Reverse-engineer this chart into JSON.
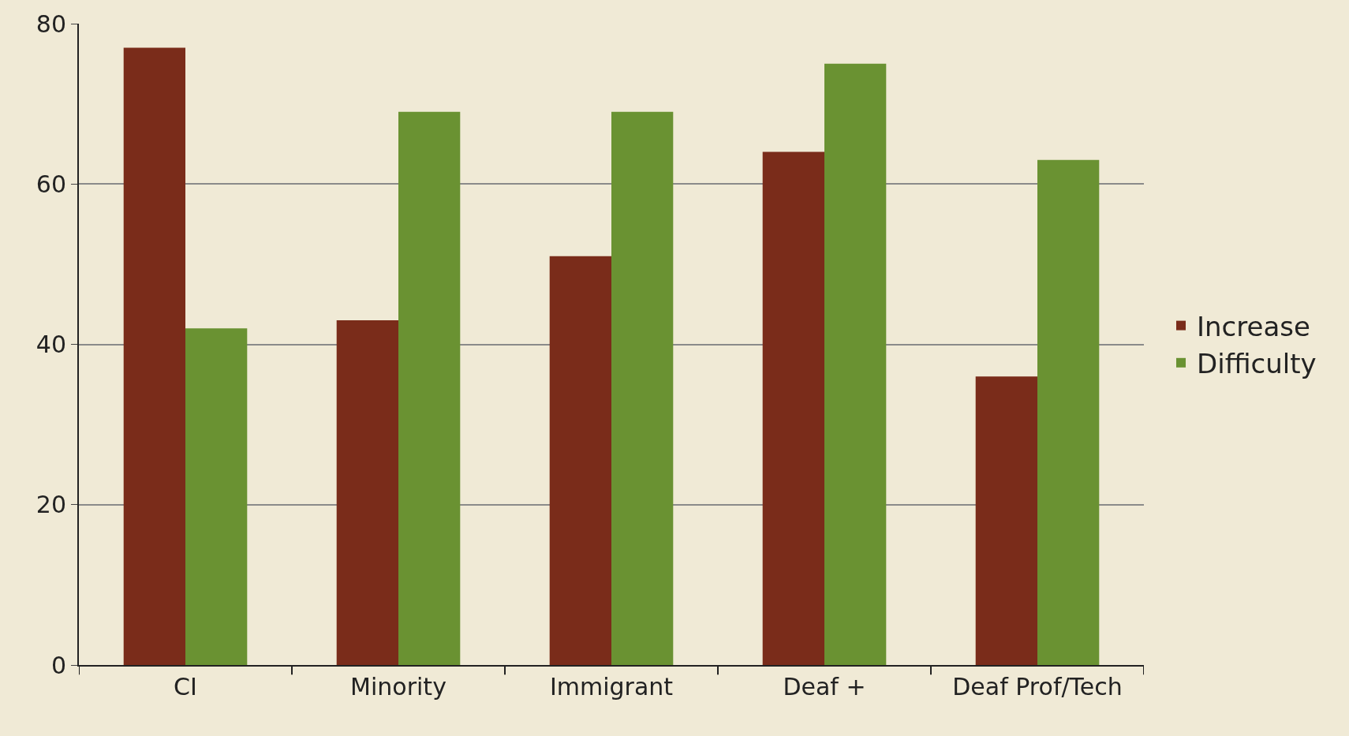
{
  "chart_data": {
    "type": "bar",
    "categories": [
      "CI",
      "Minority",
      "Immigrant",
      "Deaf +",
      "Deaf Prof/Tech"
    ],
    "series": [
      {
        "name": "Increase",
        "color": "#7a2c1a",
        "values": [
          77,
          43,
          51,
          64,
          36
        ]
      },
      {
        "name": "Difficulty",
        "color": "#6a9232",
        "values": [
          42,
          69,
          69,
          75,
          63
        ]
      }
    ],
    "ylim": [
      0,
      80
    ],
    "yticks": [
      0,
      20,
      40,
      60,
      80
    ],
    "grid": "y",
    "legend": "right"
  }
}
